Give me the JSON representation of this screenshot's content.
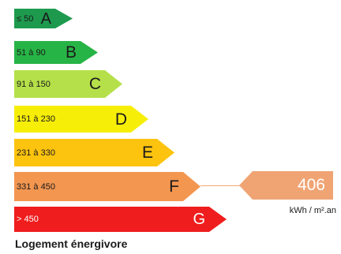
{
  "classes": [
    {
      "id": "a",
      "range": "≤ 50",
      "letter": "A",
      "color": "#1e9a4e"
    },
    {
      "id": "b",
      "range": "51 à 90",
      "letter": "B",
      "color": "#27b446"
    },
    {
      "id": "c",
      "range": "91 à 150",
      "letter": "C",
      "color": "#b5e04a"
    },
    {
      "id": "d",
      "range": "151 à 230",
      "letter": "D",
      "color": "#f7ee08"
    },
    {
      "id": "e",
      "range": "231 à 330",
      "letter": "E",
      "color": "#fcc30f"
    },
    {
      "id": "f",
      "range": "331 à 450",
      "letter": "F",
      "color": "#f39650"
    },
    {
      "id": "g",
      "range": "> 450",
      "letter": "G",
      "color": "#ef1d1d"
    }
  ],
  "current": {
    "value": "406",
    "class": "F",
    "unit": "kWh / m².an",
    "color": "#f0a474"
  },
  "caption": "Logement énergivore"
}
